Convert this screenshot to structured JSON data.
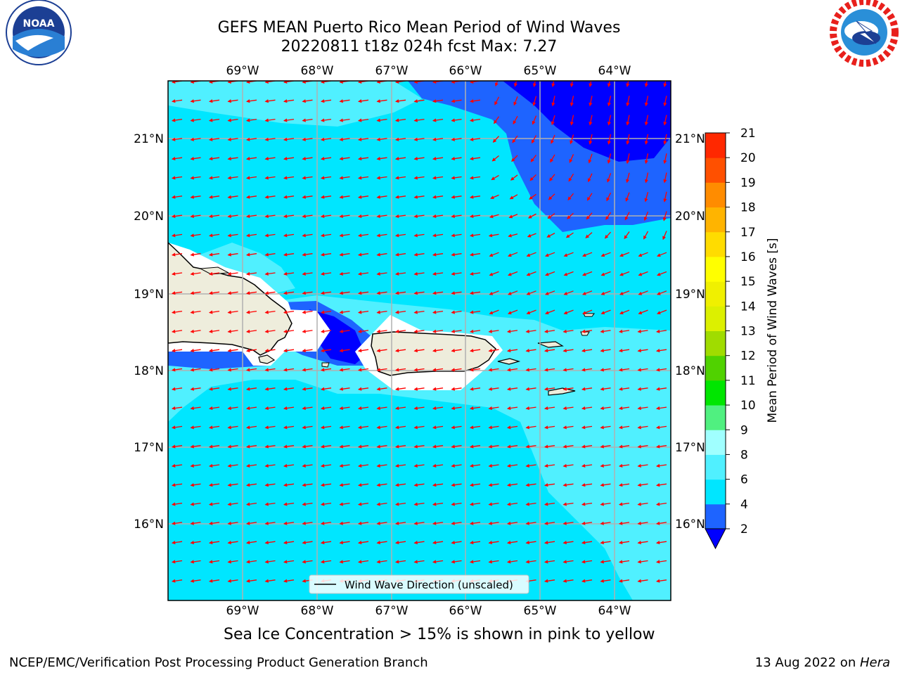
{
  "header": {
    "title_line1": "GEFS MEAN Puerto Rico Mean Period of Wind Waves",
    "title_line2": "20220811 t18z 024h fcst   Max: 7.27"
  },
  "logos": {
    "left": {
      "icon": "noaa-logo",
      "text": "NOAA"
    },
    "right": {
      "icon": "national-weather-service-logo"
    }
  },
  "map": {
    "lon_labels": [
      "69°W",
      "68°W",
      "67°W",
      "66°W",
      "65°W",
      "64°W"
    ],
    "lat_labels": [
      "21°N",
      "20°N",
      "19°N",
      "18°N",
      "17°N",
      "16°N"
    ],
    "legend_label": "Wind Wave Direction (unscaled)",
    "arrow_color": "#ff0000",
    "land_color": "#eeeddc"
  },
  "colorbar": {
    "label": "Mean Period of Wind Waves [s]",
    "ticks": [
      "2",
      "4",
      "6",
      "8",
      "9",
      "10",
      "11",
      "12",
      "13",
      "14",
      "15",
      "16",
      "17",
      "18",
      "19",
      "20",
      "21"
    ],
    "colors": [
      "#1e64ff",
      "#00e6ff",
      "#50f0ff",
      "#a0ffff",
      "#50f080",
      "#00e600",
      "#50d200",
      "#a0dc00",
      "#dcf000",
      "#f0f000",
      "#ffff00",
      "#ffdc00",
      "#ffb400",
      "#ff8c00",
      "#ff5000",
      "#ff2800",
      "#ff0000"
    ],
    "under_color": "#0000ff"
  },
  "footer": {
    "sea_ice_note": "Sea Ice Concentration > 15% is shown in pink to yellow",
    "left": "NCEP/EMC/Verification Post Processing Product Generation Branch",
    "right_prefix": "13 Aug 2022 on ",
    "right_machine": "Hera"
  }
}
